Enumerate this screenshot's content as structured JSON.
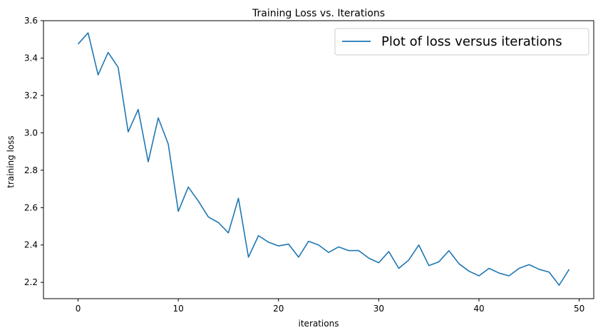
{
  "chart_data": {
    "type": "line",
    "title": "Training Loss vs. Iterations",
    "xlabel": "iterations",
    "ylabel": "training loss",
    "xlim": [
      -3.45,
      51.45
    ],
    "ylim": [
      2.113,
      3.6
    ],
    "xticks": [
      0,
      10,
      20,
      30,
      40,
      50
    ],
    "yticks": [
      2.2,
      2.4,
      2.6,
      2.8,
      3.0,
      3.2,
      3.4,
      3.6
    ],
    "xtick_labels": [
      "0",
      "10",
      "20",
      "30",
      "40",
      "50"
    ],
    "ytick_labels": [
      "2.2",
      "2.4",
      "2.6",
      "2.8",
      "3.0",
      "3.2",
      "3.4",
      "3.6"
    ],
    "grid": false,
    "legend_position": "top-right",
    "series": [
      {
        "name": "Plot of loss versus iterations",
        "color": "#1f77b4",
        "x": [
          0,
          1,
          2,
          3,
          4,
          5,
          6,
          7,
          8,
          9,
          10,
          11,
          12,
          13,
          14,
          15,
          16,
          17,
          18,
          19,
          20,
          21,
          22,
          23,
          24,
          25,
          26,
          27,
          28,
          29,
          30,
          31,
          32,
          33,
          34,
          35,
          36,
          37,
          38,
          39,
          40,
          41,
          42,
          43,
          44,
          45,
          46,
          47,
          48,
          49
        ],
        "values": [
          3.475,
          3.535,
          3.31,
          3.43,
          3.35,
          3.005,
          3.125,
          2.845,
          3.08,
          2.94,
          2.58,
          2.71,
          2.635,
          2.55,
          2.52,
          2.465,
          2.65,
          2.335,
          2.45,
          2.415,
          2.395,
          2.405,
          2.335,
          2.42,
          2.4,
          2.36,
          2.39,
          2.37,
          2.37,
          2.33,
          2.305,
          2.365,
          2.275,
          2.32,
          2.4,
          2.29,
          2.31,
          2.37,
          2.3,
          2.26,
          2.235,
          2.275,
          2.25,
          2.235,
          2.275,
          2.295,
          2.27,
          2.255,
          2.185,
          2.27
        ]
      }
    ]
  }
}
